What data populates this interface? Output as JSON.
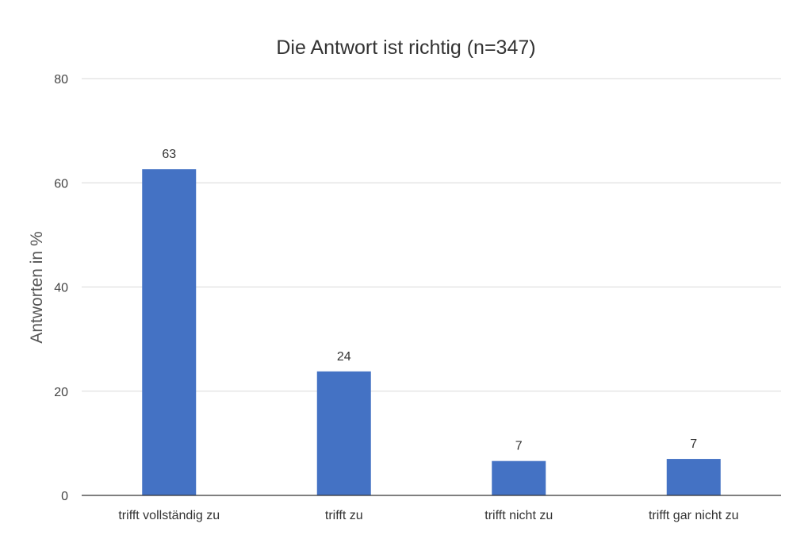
{
  "chart_data": {
    "type": "bar",
    "title": "Die Antwort ist richtig (n=347)",
    "xlabel": "",
    "ylabel": "Antworten in %",
    "categories": [
      "trifft vollständig zu",
      "trifft zu",
      "trifft nicht zu",
      "trifft gar nicht zu"
    ],
    "values": [
      62.6,
      23.8,
      6.6,
      7.0
    ],
    "data_labels": [
      "63",
      "24",
      "7",
      "7"
    ],
    "ylim": [
      0,
      80
    ],
    "yticks": [
      0,
      20,
      40,
      60,
      80
    ],
    "grid": true,
    "bar_color": "#4472c4"
  }
}
